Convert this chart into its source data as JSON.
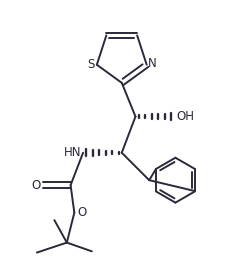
{
  "bg_color": "#ffffff",
  "line_color": "#2a2a3a",
  "figsize": [
    2.51,
    2.78
  ],
  "dpi": 100,
  "lw": 1.4,
  "xlim": [
    0,
    10
  ],
  "ylim": [
    0,
    11
  ]
}
